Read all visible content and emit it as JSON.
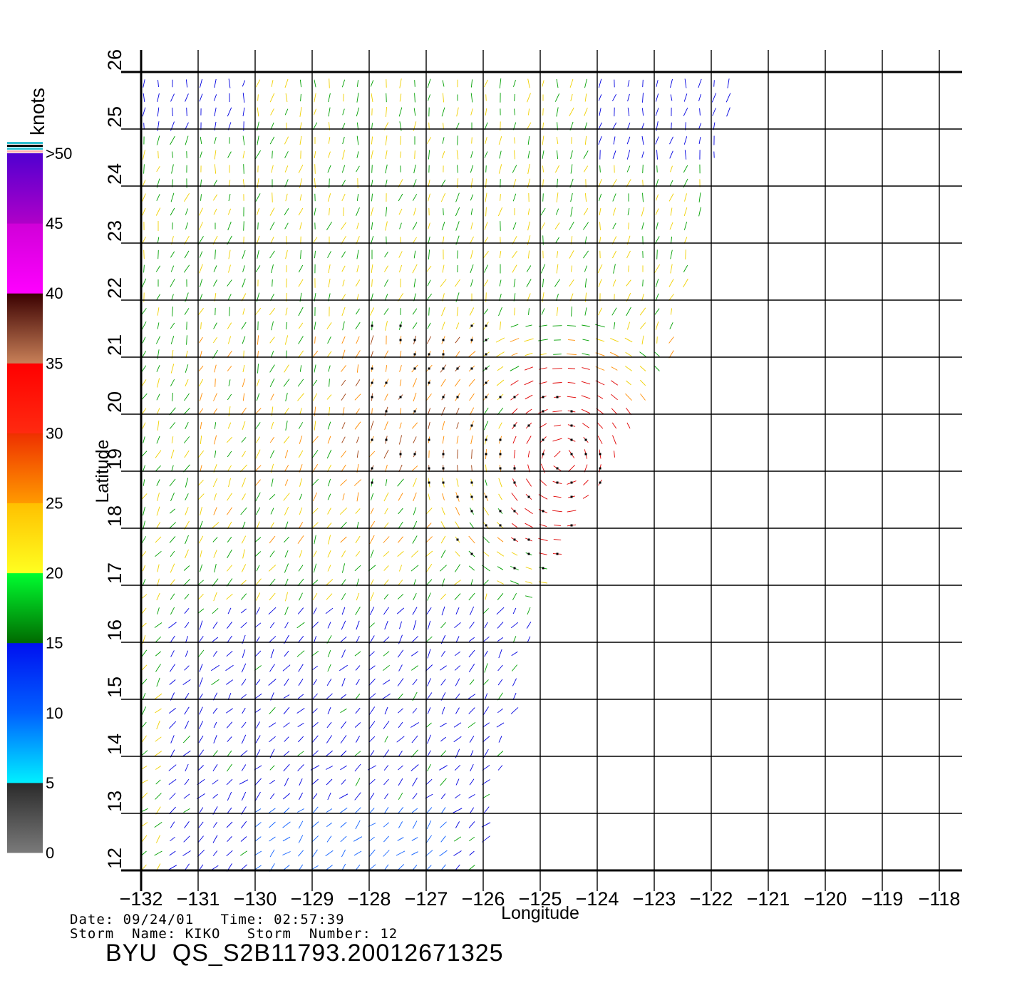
{
  "map": {
    "x_axis_label": "Longitude",
    "y_axis_label": "Latitude",
    "longitude_ticks": [
      "-132",
      "-131",
      "-130",
      "-129",
      "-128",
      "-127",
      "-126",
      "-125",
      "-124",
      "-123",
      "-122",
      "-121",
      "-120",
      "-119",
      "-118"
    ],
    "latitude_ticks": [
      "12",
      "13",
      "14",
      "15",
      "16",
      "17",
      "18",
      "19",
      "20",
      "21",
      "22",
      "23",
      "24",
      "25",
      "26"
    ],
    "lon_range": [
      -132,
      -118
    ],
    "lat_range": [
      12,
      26
    ],
    "grid": true
  },
  "colorbar": {
    "unit": "knots",
    "ticks": [
      "0",
      "5",
      "10",
      "15",
      "20",
      "25",
      "30",
      "35",
      "40",
      "45",
      ">50"
    ],
    "bands": [
      {
        "from": 0,
        "to": 5,
        "colors": [
          "#7a7a7a",
          "#2a2a2a"
        ]
      },
      {
        "from": 5,
        "to": 10,
        "colors": [
          "#00f0ff",
          "#0060ff"
        ]
      },
      {
        "from": 10,
        "to": 15,
        "colors": [
          "#0060ff",
          "#0010f0"
        ]
      },
      {
        "from": 15,
        "to": 20,
        "colors": [
          "#006a00",
          "#00ff30"
        ]
      },
      {
        "from": 20,
        "to": 25,
        "colors": [
          "#ffff20",
          "#ffc000"
        ]
      },
      {
        "from": 25,
        "to": 30,
        "colors": [
          "#ff9a00",
          "#ee3000"
        ]
      },
      {
        "from": 30,
        "to": 35,
        "colors": [
          "#ff2a10",
          "#ff0000"
        ]
      },
      {
        "from": 35,
        "to": 40,
        "colors": [
          "#c88058",
          "#3a0000"
        ]
      },
      {
        "from": 40,
        "to": 45,
        "colors": [
          "#ff00ff",
          "#d000d8"
        ]
      },
      {
        "from": 45,
        "to": 50,
        "colors": [
          "#b000c8",
          "#5000d0"
        ]
      }
    ],
    "top_stripes": [
      "#ffb0b0",
      "#30c0d0",
      "#000000",
      "#30c0d0"
    ]
  },
  "wind_colors": {
    "calm": "#b0b0b0",
    "light": "#1060ff",
    "blue": "#0000e0",
    "green": "#00a000",
    "yellow": "#f0d000",
    "orange": "#ff8c00",
    "red": "#e00000",
    "brown": "#a04010",
    "rain_flag": "#000000"
  },
  "info": {
    "date_line": "Date: 09/24/01   Time: 02:57:39",
    "storm_line": "Storm  Name: KIKO   Storm  Number: 12",
    "title": "BYU  QS_S2B11793.20012671325"
  }
}
